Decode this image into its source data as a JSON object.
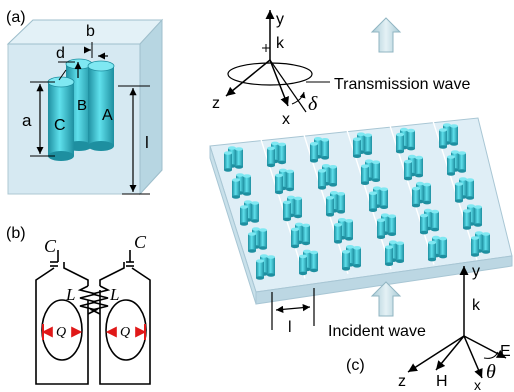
{
  "panels": {
    "a": {
      "tag": "(a)",
      "labels": {
        "a": "a",
        "b": "b",
        "d": "d",
        "l": "l",
        "A": "A",
        "B": "B",
        "C": "C"
      }
    },
    "b": {
      "tag": "(b)",
      "capacitor_label": "C",
      "inductor_label": "L",
      "charge_label": "Q"
    },
    "c": {
      "tag": "(c)",
      "period_label": "l",
      "transmission_label": "Transmission wave",
      "incident_label": "Incident wave",
      "top_axes": {
        "y": "y",
        "k": "k",
        "z": "z",
        "x": "x",
        "angle": "δ"
      },
      "bottom_axes": {
        "y": "y",
        "k": "k",
        "z": "z",
        "H": "H",
        "x": "x",
        "E": "E",
        "angle": "θ"
      }
    }
  },
  "colors": {
    "cylinder": "#35c4d4",
    "cylinder_dark": "#1e8fa0",
    "cube": "#cfe6f0",
    "slab": "#dfeef6",
    "arrow_fill": "#cfe3ea",
    "charge_arrow": "#e01818"
  }
}
